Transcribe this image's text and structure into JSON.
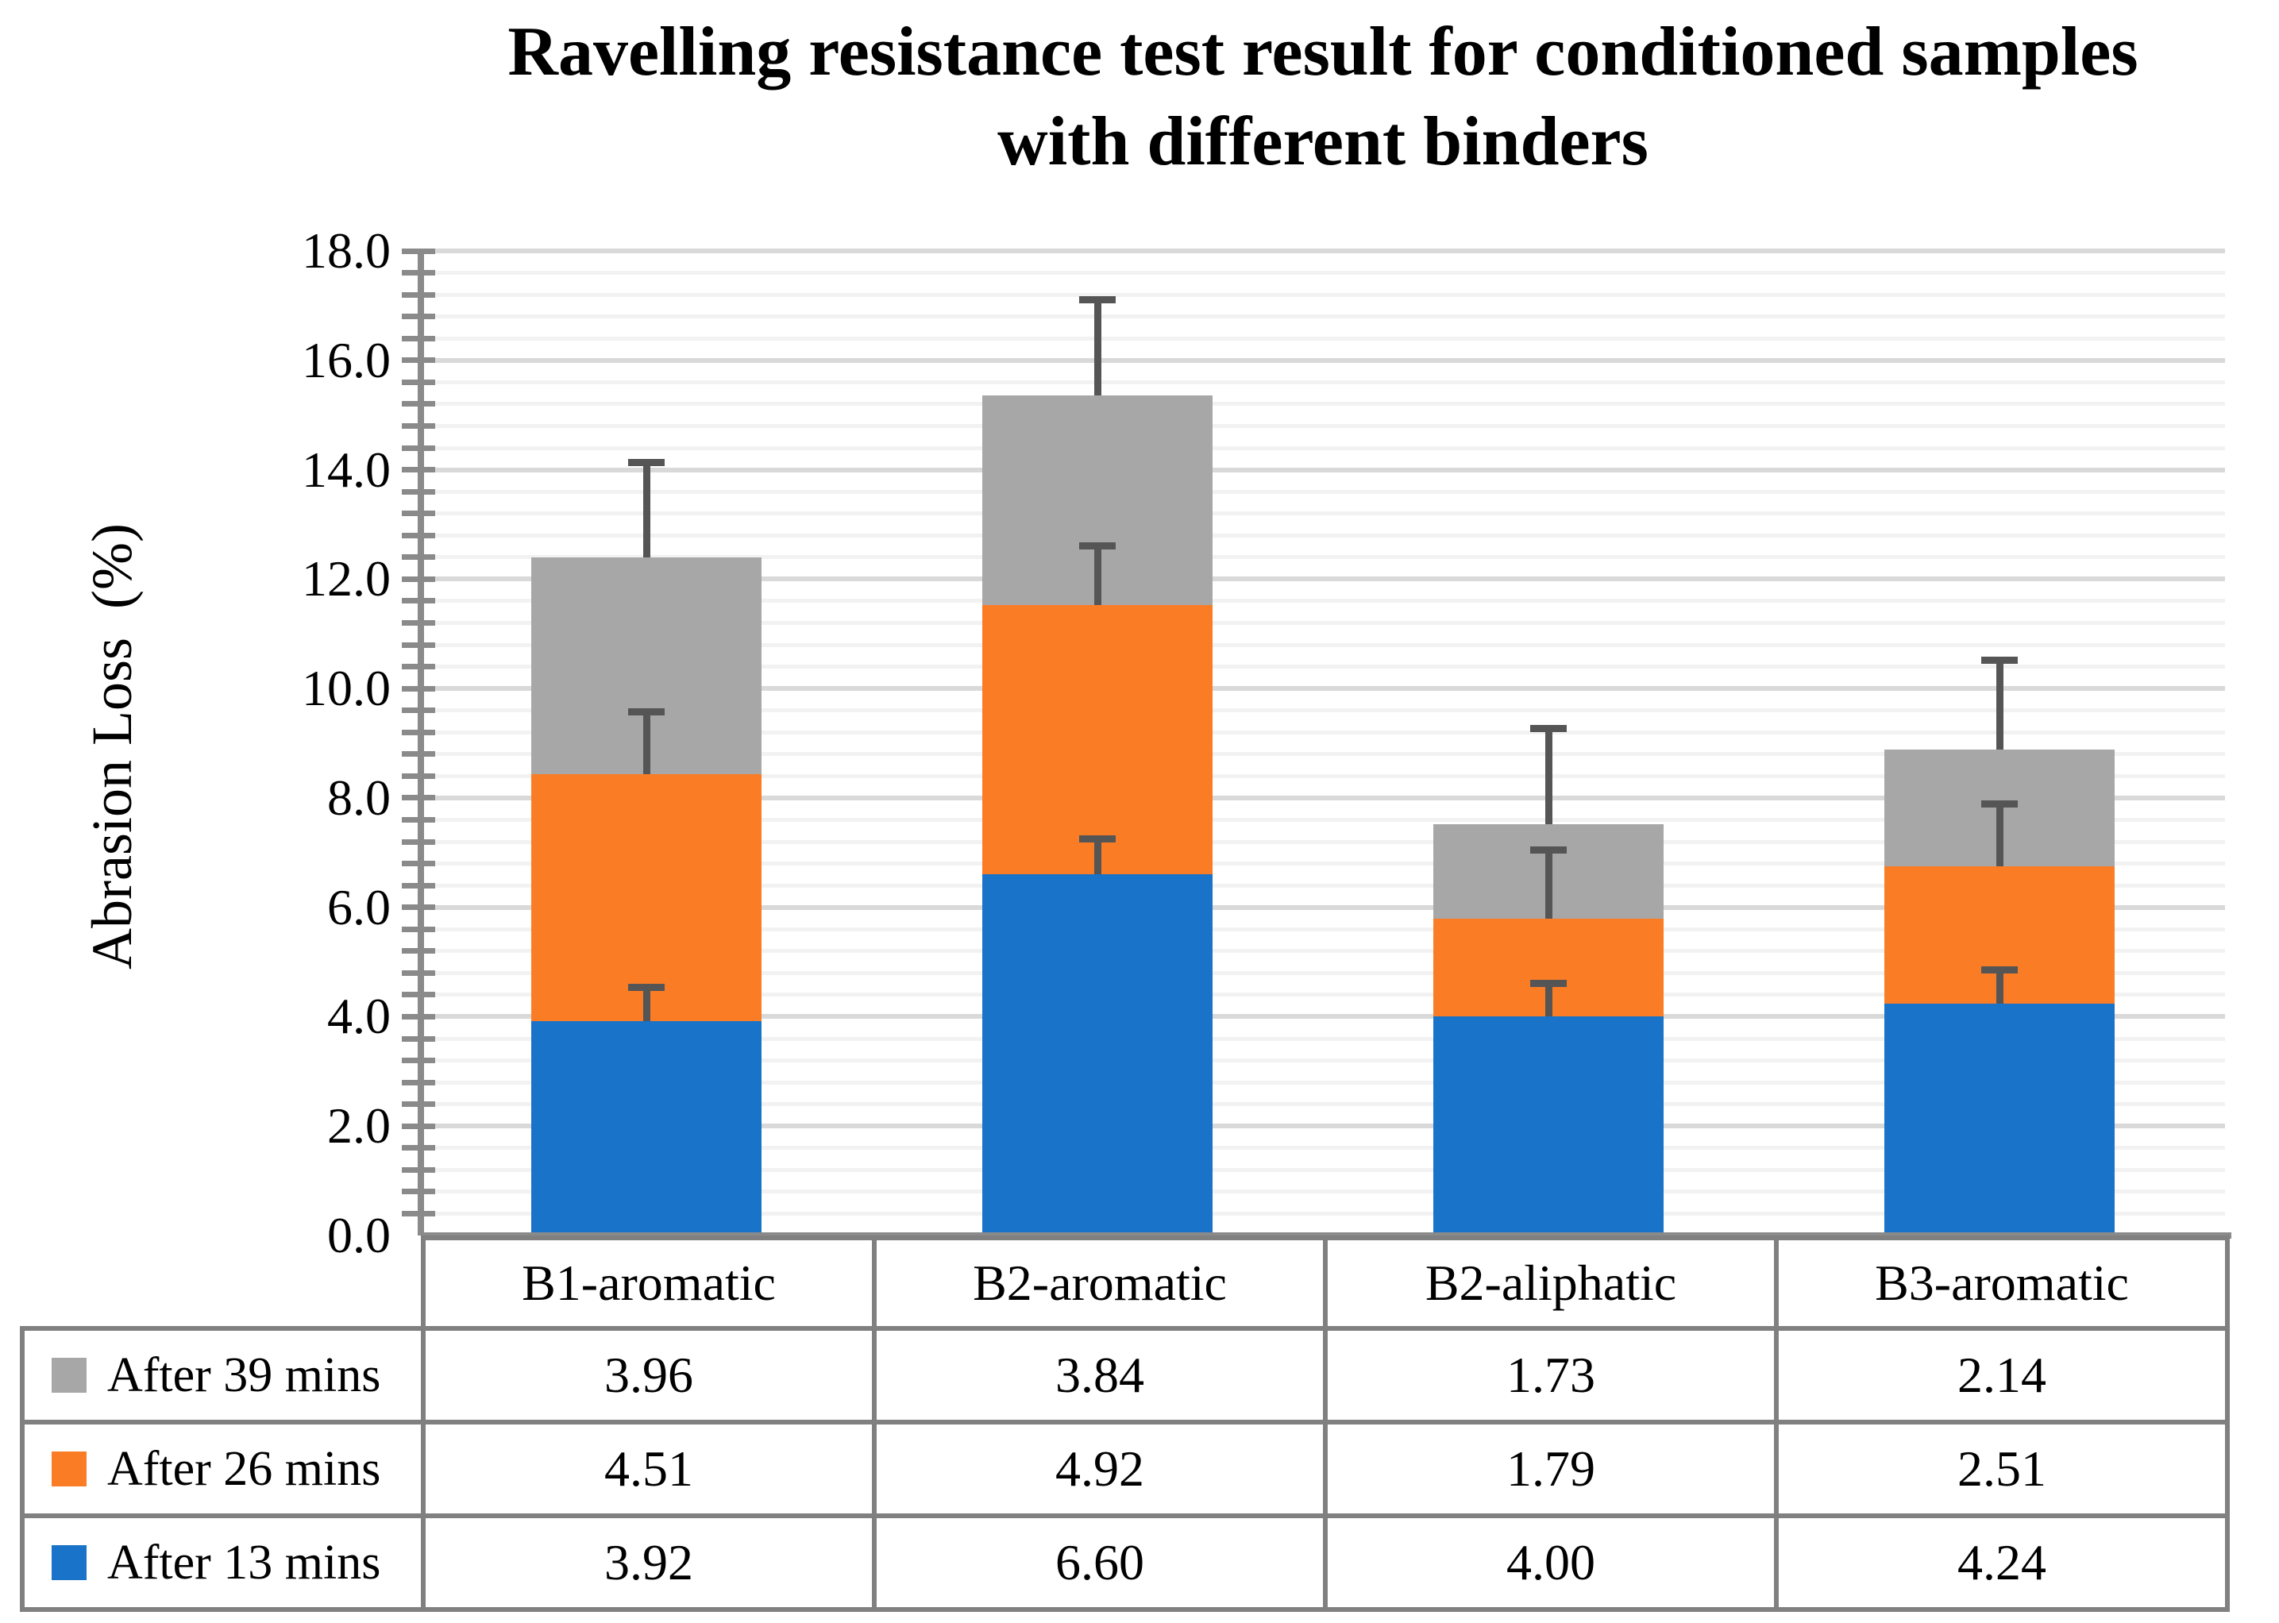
{
  "title": {
    "line1": "Ravelling resistance test result for conditioned samples",
    "line2": "with different binders"
  },
  "y_axis": {
    "title": "Abrasion Loss  (%)",
    "min": 0,
    "max": 18,
    "major_step": 2,
    "minor_step": 0.4,
    "tick_decimals": 1
  },
  "chart_data": {
    "type": "bar",
    "stacked": true,
    "title": "Ravelling resistance test result for conditioned samples with different binders",
    "xlabel": "",
    "ylabel": "Abrasion Loss (%)",
    "ylim": [
      0,
      18
    ],
    "grid": "horizontal",
    "legend_position": "left-column-of-data-table",
    "categories": [
      "B1-aromatic",
      "B2-aromatic",
      "B2-aliphatic",
      "B3-aromatic"
    ],
    "series": [
      {
        "name": "After 13 mins",
        "color": "#1973C8",
        "values": [
          3.92,
          6.6,
          4.0,
          4.24
        ],
        "upper_errors": [
          0.62,
          0.66,
          0.62,
          0.62
        ]
      },
      {
        "name": "After 26 mins",
        "color": "#FA7D26",
        "values": [
          4.51,
          4.92,
          1.79,
          2.51
        ],
        "upper_errors": [
          1.15,
          1.1,
          1.26,
          1.15
        ]
      },
      {
        "name": "After 39 mins",
        "color": "#A7A7A7",
        "values": [
          3.96,
          3.84,
          1.73,
          2.14
        ],
        "upper_errors": [
          1.75,
          1.76,
          1.75,
          1.63
        ]
      }
    ]
  },
  "table": {
    "row_order_top_to_bottom": [
      "After 39 mins",
      "After 26 mins",
      "After 13 mins"
    ],
    "value_decimals": 2
  },
  "colors": {
    "axis": "#8A8A8A",
    "table_border": "#808080",
    "grid_major": "#D9D9D9",
    "grid_minor": "#F2F2F2",
    "error_bar": "#555555",
    "background": "#FFFFFF",
    "text": "#000000"
  }
}
